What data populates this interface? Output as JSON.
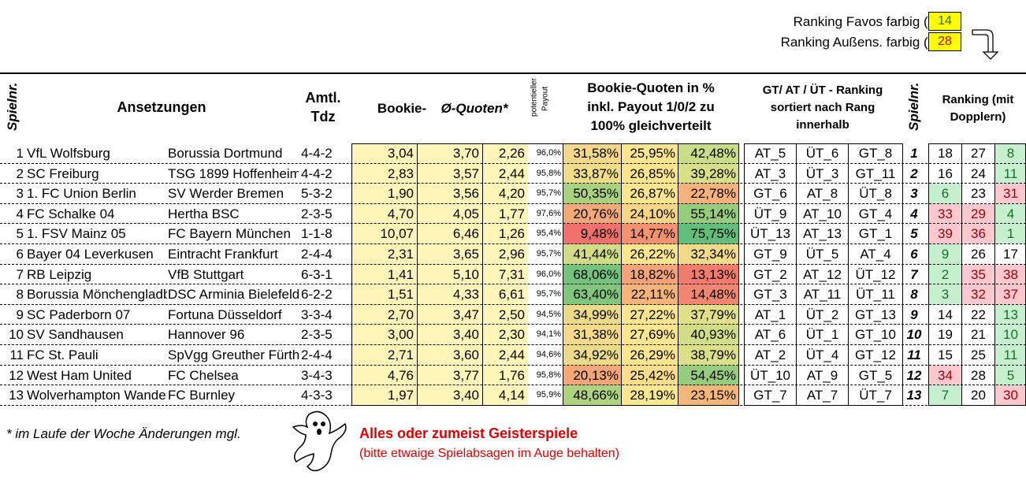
{
  "config": {
    "favos_label": "Ranking Favos farbig (<):",
    "favos_value": "14",
    "aussens_label": "Ranking Außens. farbig (>):",
    "aussens_value": "28",
    "colors": {
      "yellow": "#ffff00",
      "favos_text": "#2a7a2a",
      "aussens_text": "#c00000"
    }
  },
  "header": {
    "spielnr_left": "Spielnr.",
    "ansetzungen": "Ansetzungen",
    "amtl": "Amtl.",
    "tdz": "Tdz",
    "bookie": "Bookie-",
    "quoten": "Ø-Quoten*",
    "payout_a": "potentieller",
    "payout_b": "Payout",
    "bq_line1": "Bookie-Quoten in %",
    "bq_line2": "inkl. Payout 1/0/2 zu",
    "bq_line3": "100% gleichverteilt",
    "rk_line1": "GT/ AT / ÜT - Ranking",
    "rk_line2": "sortiert nach Rang",
    "rk_line3": "innerhalb",
    "spielnr_right": "Spielnr.",
    "rmd_line1": "Ranking (mit",
    "rmd_line2": "Dopplern)"
  },
  "rows": [
    {
      "nr": "1",
      "home": "VfL Wolfsburg",
      "away": "Borussia Dortmund",
      "tdz": "4-4-2",
      "q1": "3,04",
      "q2": "3,70",
      "q3": "2,26",
      "pay": "96,0%",
      "p1": "31,58%",
      "p2": "25,95%",
      "p3": "42,48%",
      "c1": "#f4d88a",
      "c2": "#fbe58f",
      "c3": "#c9dc87",
      "r1": "AT_5",
      "r2": "ÜT_6",
      "r3": "GT_8",
      "sn": "1",
      "k1": "18",
      "k2": "27",
      "k3": "8",
      "k1c": "",
      "k2c": "",
      "k3c": "green"
    },
    {
      "nr": "2",
      "home": "SC Freiburg",
      "away": "TSG 1899 Hoffenheim",
      "tdz": "4-4-2",
      "q1": "2,83",
      "q2": "3,57",
      "q3": "2,44",
      "pay": "95,8%",
      "p1": "33,87%",
      "p2": "26,85%",
      "p3": "39,28%",
      "c1": "#eedc88",
      "c2": "#fbe48e",
      "c3": "#d9df88",
      "r1": "AT_3",
      "r2": "ÜT_3",
      "r3": "GT_11",
      "sn": "2",
      "k1": "16",
      "k2": "24",
      "k3": "11",
      "k1c": "",
      "k2c": "",
      "k3c": "green"
    },
    {
      "nr": "3",
      "home": "1. FC Union Berlin",
      "away": "SV Werder Bremen",
      "tdz": "5-3-2",
      "q1": "1,90",
      "q2": "3,56",
      "q3": "4,20",
      "pay": "95,7%",
      "p1": "50,35%",
      "p2": "26,87%",
      "p3": "22,78%",
      "c1": "#a8d27f",
      "c2": "#fbe48e",
      "c3": "#f6b27a",
      "r1": "GT_6",
      "r2": "AT_8",
      "r3": "ÜT_8",
      "sn": "3",
      "k1": "6",
      "k2": "23",
      "k3": "31",
      "k1c": "green",
      "k2c": "",
      "k3c": "red"
    },
    {
      "nr": "4",
      "home": "FC Schalke 04",
      "away": "Hertha BSC",
      "tdz": "2-3-5",
      "q1": "4,70",
      "q2": "4,05",
      "q3": "1,77",
      "pay": "97,6%",
      "p1": "20,76%",
      "p2": "24,10%",
      "p3": "55,14%",
      "c1": "#f5a877",
      "c2": "#f8d487",
      "c3": "#95cc7d",
      "r1": "ÜT_9",
      "r2": "AT_10",
      "r3": "GT_4",
      "sn": "4",
      "k1": "33",
      "k2": "29",
      "k3": "4",
      "k1c": "red",
      "k2c": "red",
      "k3c": "green"
    },
    {
      "nr": "5",
      "home": "1. FSV Mainz 05",
      "away": "FC Bayern München",
      "tdz": "1-1-8",
      "q1": "10,07",
      "q2": "6,46",
      "q3": "1,26",
      "pay": "95,4%",
      "p1": "9,48%",
      "p2": "14,77%",
      "p3": "75,75%",
      "c1": "#f0706b",
      "c2": "#f39171",
      "c3": "#63be7b",
      "r1": "ÜT_13",
      "r2": "AT_13",
      "r3": "GT_1",
      "sn": "5",
      "k1": "39",
      "k2": "36",
      "k3": "1",
      "k1c": "red",
      "k2c": "red",
      "k3c": "green"
    },
    {
      "nr": "6",
      "home": "Bayer 04 Leverkusen",
      "away": "Eintracht Frankfurt",
      "tdz": "2-4-4",
      "q1": "2,31",
      "q2": "3,65",
      "q3": "2,96",
      "pay": "95,7%",
      "p1": "41,44%",
      "p2": "26,22%",
      "p3": "32,34%",
      "c1": "#d0dc86",
      "c2": "#fbe48e",
      "c3": "#f1d98a",
      "r1": "GT_9",
      "r2": "ÜT_5",
      "r3": "AT_4",
      "sn": "6",
      "k1": "9",
      "k2": "26",
      "k3": "17",
      "k1c": "green",
      "k2c": "",
      "k3c": ""
    },
    {
      "nr": "7",
      "home": "RB Leipzig",
      "away": "VfB Stuttgart",
      "tdz": "6-3-1",
      "q1": "1,41",
      "q2": "5,10",
      "q3": "7,31",
      "pay": "96,0%",
      "p1": "68,06%",
      "p2": "18,82%",
      "p3": "13,13%",
      "c1": "#74c37c",
      "c2": "#f5a277",
      "c3": "#f17b6d",
      "r1": "GT_2",
      "r2": "AT_12",
      "r3": "ÜT_12",
      "sn": "7",
      "k1": "2",
      "k2": "35",
      "k3": "38",
      "k1c": "green",
      "k2c": "red",
      "k3c": "red"
    },
    {
      "nr": "8",
      "home": "Borussia Mönchengladbach",
      "away": "DSC Arminia Bielefeld",
      "tdz": "6-2-2",
      "q1": "1,51",
      "q2": "4,33",
      "q3": "6,61",
      "pay": "95,7%",
      "p1": "63,40%",
      "p2": "22,11%",
      "p3": "14,48%",
      "c1": "#80c67c",
      "c2": "#f6b47a",
      "c3": "#f28670",
      "r1": "GT_3",
      "r2": "AT_11",
      "r3": "ÜT_11",
      "sn": "8",
      "k1": "3",
      "k2": "32",
      "k3": "37",
      "k1c": "green",
      "k2c": "red",
      "k3c": "red"
    },
    {
      "nr": "9",
      "home": "SC Paderborn 07",
      "away": "Fortuna Düsseldorf",
      "tdz": "3-3-4",
      "q1": "2,70",
      "q2": "3,47",
      "q3": "2,50",
      "pay": "94,5%",
      "p1": "34,99%",
      "p2": "27,22%",
      "p3": "37,79%",
      "c1": "#ebdb88",
      "c2": "#fbe48e",
      "c3": "#dfe088",
      "r1": "AT_1",
      "r2": "ÜT_2",
      "r3": "GT_13",
      "sn": "9",
      "k1": "14",
      "k2": "22",
      "k3": "13",
      "k1c": "",
      "k2c": "",
      "k3c": "green"
    },
    {
      "nr": "10",
      "home": "SV Sandhausen",
      "away": "Hannover 96",
      "tdz": "2-3-5",
      "q1": "3,00",
      "q2": "3,40",
      "q3": "2,30",
      "pay": "94,1%",
      "p1": "31,38%",
      "p2": "27,69%",
      "p3": "40,93%",
      "c1": "#f4d98a",
      "c2": "#fbe68f",
      "c3": "#d2dd87",
      "r1": "AT_6",
      "r2": "ÜT_1",
      "r3": "GT_10",
      "sn": "10",
      "k1": "19",
      "k2": "21",
      "k3": "10",
      "k1c": "",
      "k2c": "",
      "k3c": "green"
    },
    {
      "nr": "11",
      "home": "FC St. Pauli",
      "away": "SpVgg Greuther Fürth",
      "tdz": "2-4-4",
      "q1": "2,71",
      "q2": "3,60",
      "q3": "2,44",
      "pay": "94,6%",
      "p1": "34,92%",
      "p2": "26,29%",
      "p3": "38,79%",
      "c1": "#ebdb88",
      "c2": "#fbe48e",
      "c3": "#dbdf88",
      "r1": "AT_2",
      "r2": "ÜT_4",
      "r3": "GT_12",
      "sn": "11",
      "k1": "15",
      "k2": "25",
      "k3": "11",
      "k1c": "",
      "k2c": "",
      "k3c": "green"
    },
    {
      "nr": "12",
      "home": "West Ham United",
      "away": "FC Chelsea",
      "tdz": "3-4-3",
      "q1": "4,76",
      "q2": "3,77",
      "q3": "1,76",
      "pay": "95,8%",
      "p1": "20,13%",
      "p2": "25,42%",
      "p3": "54,45%",
      "c1": "#f5a677",
      "c2": "#fadc8b",
      "c3": "#97cc7e",
      "r1": "ÜT_10",
      "r2": "AT_9",
      "r3": "GT_5",
      "sn": "12",
      "k1": "34",
      "k2": "28",
      "k3": "5",
      "k1c": "red",
      "k2c": "",
      "k3c": "green"
    },
    {
      "nr": "13",
      "home": "Wolverhampton Wanderers",
      "away": "FC Burnley",
      "tdz": "4-3-3",
      "q1": "1,97",
      "q2": "3,40",
      "q3": "4,14",
      "pay": "95,9%",
      "p1": "48,66%",
      "p2": "28,19%",
      "p3": "23,15%",
      "c1": "#aed37f",
      "c2": "#fbe78f",
      "c3": "#f6b67a",
      "r1": "GT_7",
      "r2": "AT_7",
      "r3": "ÜT_7",
      "sn": "13",
      "k1": "7",
      "k2": "20",
      "k3": "30",
      "k1c": "green",
      "k2c": "",
      "k3c": "red"
    }
  ],
  "footer": {
    "note": "* im Laufe der Woche Änderungen mgl.",
    "warn_title": "Alles oder zumeist Geisterspiele",
    "warn_sub": "(bitte etwaige Spielabsagen im Auge behalten)"
  }
}
